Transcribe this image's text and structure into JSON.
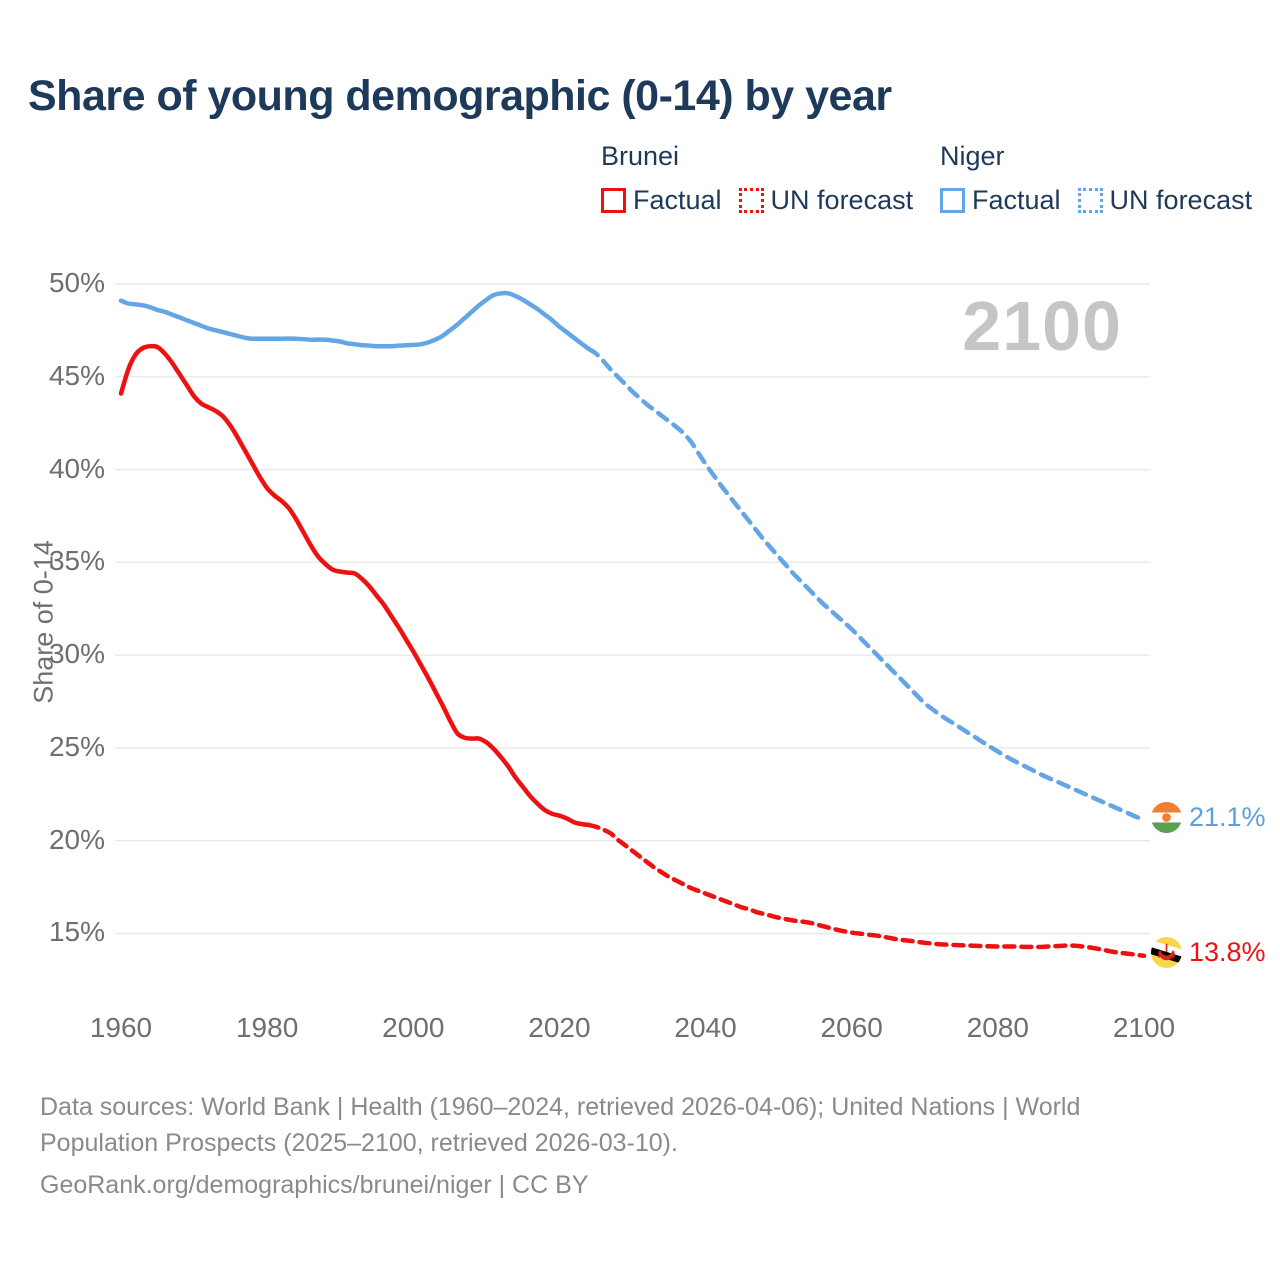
{
  "title": "Share of young demographic (0-14) by year",
  "watermark": "2100",
  "legend": {
    "groups": [
      {
        "name": "Brunei",
        "color": "#ee1111",
        "items": [
          {
            "label": "Factual",
            "style": "solid"
          },
          {
            "label": "UN forecast",
            "style": "dotted"
          }
        ]
      },
      {
        "name": "Niger",
        "color": "#64a5e6",
        "items": [
          {
            "label": "Factual",
            "style": "solid"
          },
          {
            "label": "UN forecast",
            "style": "dotted"
          }
        ]
      }
    ]
  },
  "end_labels": [
    {
      "series": "Niger",
      "text": "21.1%",
      "color": "#5b9fe0",
      "flag": "niger-flag"
    },
    {
      "series": "Brunei",
      "text": "13.8%",
      "color": "#ee1111",
      "flag": "brunei-flag"
    }
  ],
  "footer": {
    "lines": [
      "Data sources: World Bank | Health (1960–2024, retrieved 2026-04-06); United Nations | World",
      "Population Prospects (2025–2100, retrieved 2026-03-10).",
      "GeoRank.org/demographics/brunei/niger | CC BY"
    ]
  },
  "chart_data": {
    "type": "line",
    "title": "Share of young demographic (0-14) by year",
    "xlabel": "",
    "ylabel": "Share of 0-14",
    "xlim": [
      1955,
      2115
    ],
    "ylim": [
      13,
      51
    ],
    "grid": true,
    "grid_color": "#e8e8e8",
    "y_axis": {
      "tick_values": [
        50,
        45,
        40,
        35,
        30,
        25,
        20,
        15
      ],
      "ticks": [
        "50%",
        "45%",
        "40%",
        "35%",
        "30%",
        "25%",
        "20%",
        "15%"
      ]
    },
    "x_axis": {
      "tick_values": [
        1960,
        1980,
        2000,
        2020,
        2040,
        2060,
        2080,
        2100
      ],
      "ticks": [
        "1960",
        "1980",
        "2000",
        "2020",
        "2040",
        "2060",
        "2080",
        "2100"
      ]
    },
    "series": [
      {
        "name": "Niger Factual",
        "color": "#64a5e6",
        "style": "solid",
        "width": 4.5,
        "points": [
          [
            1960,
            49.1
          ],
          [
            1961,
            48.95
          ],
          [
            1962,
            48.9
          ],
          [
            1963,
            48.85
          ],
          [
            1964,
            48.75
          ],
          [
            1965,
            48.6
          ],
          [
            1966,
            48.5
          ],
          [
            1967,
            48.35
          ],
          [
            1968,
            48.2
          ],
          [
            1969,
            48.05
          ],
          [
            1970,
            47.9
          ],
          [
            1971,
            47.75
          ],
          [
            1972,
            47.6
          ],
          [
            1973,
            47.5
          ],
          [
            1974,
            47.4
          ],
          [
            1975,
            47.3
          ],
          [
            1976,
            47.2
          ],
          [
            1977,
            47.1
          ],
          [
            1978,
            47.05
          ],
          [
            1980,
            47.05
          ],
          [
            1982,
            47.05
          ],
          [
            1984,
            47.05
          ],
          [
            1986,
            47.0
          ],
          [
            1988,
            47.0
          ],
          [
            1989,
            46.95
          ],
          [
            1990,
            46.9
          ],
          [
            1991,
            46.8
          ],
          [
            1992,
            46.75
          ],
          [
            1993,
            46.7
          ],
          [
            1994,
            46.68
          ],
          [
            1995,
            46.65
          ],
          [
            1996,
            46.65
          ],
          [
            1997,
            46.65
          ],
          [
            1998,
            46.68
          ],
          [
            1999,
            46.7
          ],
          [
            2000,
            46.72
          ],
          [
            2001,
            46.75
          ],
          [
            2002,
            46.85
          ],
          [
            2003,
            47.0
          ],
          [
            2004,
            47.2
          ],
          [
            2005,
            47.5
          ],
          [
            2006,
            47.8
          ],
          [
            2007,
            48.15
          ],
          [
            2008,
            48.5
          ],
          [
            2009,
            48.85
          ],
          [
            2010,
            49.15
          ],
          [
            2011,
            49.4
          ],
          [
            2012,
            49.5
          ],
          [
            2013,
            49.5
          ],
          [
            2014,
            49.35
          ],
          [
            2015,
            49.15
          ],
          [
            2016,
            48.9
          ],
          [
            2017,
            48.65
          ],
          [
            2018,
            48.35
          ],
          [
            2019,
            48.05
          ],
          [
            2020,
            47.7
          ],
          [
            2021,
            47.4
          ],
          [
            2022,
            47.1
          ],
          [
            2023,
            46.8
          ],
          [
            2024,
            46.5
          ]
        ]
      },
      {
        "name": "Niger UN forecast",
        "color": "#64a5e6",
        "style": "dashed",
        "dash": "11 8",
        "width": 4.5,
        "points": [
          [
            2024,
            46.5
          ],
          [
            2025,
            46.25
          ],
          [
            2026,
            45.85
          ],
          [
            2027,
            45.4
          ],
          [
            2028,
            45.0
          ],
          [
            2029,
            44.6
          ],
          [
            2030,
            44.2
          ],
          [
            2031,
            43.85
          ],
          [
            2032,
            43.5
          ],
          [
            2033,
            43.2
          ],
          [
            2034,
            42.9
          ],
          [
            2035,
            42.6
          ],
          [
            2036,
            42.3
          ],
          [
            2037,
            41.95
          ],
          [
            2038,
            41.5
          ],
          [
            2039,
            40.9
          ],
          [
            2040,
            40.3
          ],
          [
            2041,
            39.75
          ],
          [
            2042,
            39.2
          ],
          [
            2043,
            38.7
          ],
          [
            2044,
            38.2
          ],
          [
            2045,
            37.7
          ],
          [
            2046,
            37.2
          ],
          [
            2047,
            36.7
          ],
          [
            2048,
            36.2
          ],
          [
            2049,
            35.75
          ],
          [
            2050,
            35.3
          ],
          [
            2051,
            34.85
          ],
          [
            2052,
            34.4
          ],
          [
            2053,
            34.0
          ],
          [
            2054,
            33.6
          ],
          [
            2055,
            33.2
          ],
          [
            2056,
            32.8
          ],
          [
            2057,
            32.45
          ],
          [
            2058,
            32.1
          ],
          [
            2059,
            31.75
          ],
          [
            2060,
            31.4
          ],
          [
            2061,
            31.0
          ],
          [
            2062,
            30.6
          ],
          [
            2063,
            30.2
          ],
          [
            2064,
            29.8
          ],
          [
            2065,
            29.4
          ],
          [
            2066,
            29.0
          ],
          [
            2067,
            28.6
          ],
          [
            2068,
            28.2
          ],
          [
            2069,
            27.8
          ],
          [
            2070,
            27.4
          ],
          [
            2071,
            27.1
          ],
          [
            2072,
            26.8
          ],
          [
            2073,
            26.55
          ],
          [
            2074,
            26.3
          ],
          [
            2075,
            26.05
          ],
          [
            2076,
            25.8
          ],
          [
            2077,
            25.55
          ],
          [
            2078,
            25.3
          ],
          [
            2079,
            25.05
          ],
          [
            2080,
            24.8
          ],
          [
            2082,
            24.35
          ],
          [
            2084,
            23.95
          ],
          [
            2086,
            23.55
          ],
          [
            2088,
            23.2
          ],
          [
            2090,
            22.85
          ],
          [
            2092,
            22.5
          ],
          [
            2094,
            22.15
          ],
          [
            2096,
            21.8
          ],
          [
            2098,
            21.45
          ],
          [
            2100,
            21.1
          ]
        ]
      },
      {
        "name": "Brunei Factual",
        "color": "#ee1111",
        "style": "solid",
        "width": 4.5,
        "points": [
          [
            1960,
            44.1
          ],
          [
            1961,
            45.4
          ],
          [
            1962,
            46.2
          ],
          [
            1963,
            46.55
          ],
          [
            1964,
            46.65
          ],
          [
            1965,
            46.6
          ],
          [
            1966,
            46.25
          ],
          [
            1967,
            45.75
          ],
          [
            1968,
            45.15
          ],
          [
            1969,
            44.55
          ],
          [
            1970,
            43.95
          ],
          [
            1971,
            43.55
          ],
          [
            1972,
            43.35
          ],
          [
            1973,
            43.15
          ],
          [
            1974,
            42.85
          ],
          [
            1975,
            42.35
          ],
          [
            1976,
            41.7
          ],
          [
            1977,
            41.0
          ],
          [
            1978,
            40.3
          ],
          [
            1979,
            39.6
          ],
          [
            1980,
            39.0
          ],
          [
            1981,
            38.6
          ],
          [
            1982,
            38.3
          ],
          [
            1983,
            37.9
          ],
          [
            1984,
            37.3
          ],
          [
            1985,
            36.6
          ],
          [
            1986,
            35.9
          ],
          [
            1987,
            35.3
          ],
          [
            1988,
            34.9
          ],
          [
            1989,
            34.6
          ],
          [
            1990,
            34.5
          ],
          [
            1991,
            34.45
          ],
          [
            1992,
            34.4
          ],
          [
            1993,
            34.1
          ],
          [
            1994,
            33.7
          ],
          [
            1995,
            33.2
          ],
          [
            1996,
            32.7
          ],
          [
            1997,
            32.1
          ],
          [
            1998,
            31.5
          ],
          [
            1999,
            30.85
          ],
          [
            2000,
            30.2
          ],
          [
            2001,
            29.5
          ],
          [
            2002,
            28.8
          ],
          [
            2003,
            28.05
          ],
          [
            2004,
            27.3
          ],
          [
            2005,
            26.5
          ],
          [
            2006,
            25.8
          ],
          [
            2007,
            25.55
          ],
          [
            2008,
            25.5
          ],
          [
            2009,
            25.5
          ],
          [
            2010,
            25.3
          ],
          [
            2011,
            24.95
          ],
          [
            2012,
            24.5
          ],
          [
            2013,
            24.0
          ],
          [
            2014,
            23.4
          ],
          [
            2015,
            22.9
          ],
          [
            2016,
            22.4
          ],
          [
            2017,
            22.0
          ],
          [
            2018,
            21.65
          ],
          [
            2019,
            21.45
          ],
          [
            2020,
            21.35
          ],
          [
            2021,
            21.2
          ],
          [
            2022,
            21.0
          ],
          [
            2023,
            20.9
          ],
          [
            2024,
            20.85
          ]
        ]
      },
      {
        "name": "Brunei UN forecast",
        "color": "#ee1111",
        "style": "dashed",
        "dash": "10 7",
        "width": 4.5,
        "points": [
          [
            2024,
            20.85
          ],
          [
            2025,
            20.75
          ],
          [
            2026,
            20.6
          ],
          [
            2027,
            20.4
          ],
          [
            2028,
            20.05
          ],
          [
            2029,
            19.75
          ],
          [
            2030,
            19.45
          ],
          [
            2031,
            19.15
          ],
          [
            2032,
            18.85
          ],
          [
            2033,
            18.55
          ],
          [
            2034,
            18.3
          ],
          [
            2035,
            18.05
          ],
          [
            2036,
            17.85
          ],
          [
            2037,
            17.65
          ],
          [
            2038,
            17.45
          ],
          [
            2039,
            17.3
          ],
          [
            2040,
            17.15
          ],
          [
            2041,
            17.0
          ],
          [
            2042,
            16.85
          ],
          [
            2043,
            16.7
          ],
          [
            2044,
            16.55
          ],
          [
            2045,
            16.4
          ],
          [
            2046,
            16.3
          ],
          [
            2047,
            16.15
          ],
          [
            2048,
            16.05
          ],
          [
            2049,
            15.95
          ],
          [
            2050,
            15.85
          ],
          [
            2052,
            15.7
          ],
          [
            2054,
            15.6
          ],
          [
            2056,
            15.4
          ],
          [
            2058,
            15.2
          ],
          [
            2060,
            15.05
          ],
          [
            2062,
            14.95
          ],
          [
            2064,
            14.85
          ],
          [
            2066,
            14.7
          ],
          [
            2068,
            14.6
          ],
          [
            2070,
            14.5
          ],
          [
            2072,
            14.42
          ],
          [
            2074,
            14.38
          ],
          [
            2076,
            14.35
          ],
          [
            2078,
            14.32
          ],
          [
            2080,
            14.3
          ],
          [
            2082,
            14.3
          ],
          [
            2084,
            14.28
          ],
          [
            2086,
            14.28
          ],
          [
            2088,
            14.32
          ],
          [
            2090,
            14.35
          ],
          [
            2092,
            14.28
          ],
          [
            2094,
            14.15
          ],
          [
            2096,
            14.0
          ],
          [
            2098,
            13.9
          ],
          [
            2100,
            13.8
          ]
        ]
      }
    ]
  }
}
